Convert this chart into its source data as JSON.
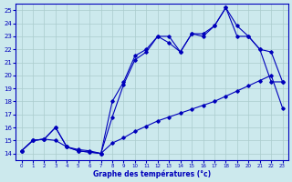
{
  "xlabel": "Graphe des températures (°c)",
  "xlim": [
    -0.5,
    23.5
  ],
  "ylim": [
    13.5,
    25.5
  ],
  "yticks": [
    14,
    15,
    16,
    17,
    18,
    19,
    20,
    21,
    22,
    23,
    24,
    25
  ],
  "xticks": [
    0,
    1,
    2,
    3,
    4,
    5,
    6,
    7,
    8,
    9,
    10,
    11,
    12,
    13,
    14,
    15,
    16,
    17,
    18,
    19,
    20,
    21,
    22,
    23
  ],
  "background_color": "#cce9ed",
  "grid_color": "#aacccc",
  "line_color": "#0000bb",
  "line1_x": [
    0,
    1,
    2,
    3,
    4,
    5,
    6,
    7,
    8,
    9,
    10,
    11,
    12,
    13,
    14,
    15,
    16,
    17,
    18,
    19,
    20,
    21,
    22,
    23
  ],
  "line1_y": [
    14.2,
    15.0,
    15.1,
    15.0,
    14.5,
    14.3,
    14.2,
    14.0,
    14.8,
    15.2,
    15.7,
    16.1,
    16.5,
    16.8,
    17.1,
    17.4,
    17.7,
    18.0,
    18.4,
    18.8,
    19.2,
    19.6,
    20.0,
    17.5
  ],
  "line2_x": [
    0,
    1,
    2,
    3,
    4,
    5,
    6,
    7,
    8,
    9,
    10,
    11,
    12,
    13,
    14,
    15,
    16,
    17,
    18,
    19,
    20,
    21,
    22,
    23
  ],
  "line2_y": [
    14.2,
    15.0,
    15.1,
    16.0,
    14.5,
    14.2,
    14.1,
    14.0,
    16.8,
    19.3,
    21.2,
    21.8,
    23.0,
    22.5,
    21.8,
    23.2,
    23.2,
    23.8,
    25.2,
    23.0,
    23.0,
    22.0,
    19.5,
    19.5
  ],
  "line3_x": [
    0,
    1,
    2,
    3,
    4,
    5,
    6,
    7,
    8,
    9,
    10,
    11,
    12,
    13,
    14,
    15,
    16,
    17,
    18,
    19,
    20,
    21,
    22,
    23
  ],
  "line3_y": [
    14.2,
    15.0,
    15.1,
    16.0,
    14.5,
    14.2,
    14.1,
    14.0,
    18.0,
    19.5,
    21.5,
    22.0,
    23.0,
    23.0,
    21.8,
    23.2,
    23.0,
    23.8,
    25.2,
    23.8,
    23.0,
    22.0,
    21.8,
    19.5
  ]
}
